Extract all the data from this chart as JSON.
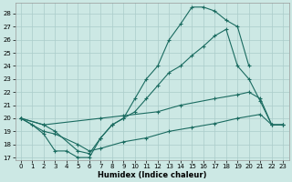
{
  "xlabel": "Humidex (Indice chaleur)",
  "background_color": "#cce8e4",
  "grid_color": "#aaccca",
  "line_color": "#1a6b60",
  "xlim": [
    -0.5,
    23.5
  ],
  "ylim": [
    16.8,
    28.8
  ],
  "yticks": [
    17,
    18,
    19,
    20,
    21,
    22,
    23,
    24,
    25,
    26,
    27,
    28
  ],
  "xticks": [
    0,
    1,
    2,
    3,
    4,
    5,
    6,
    7,
    8,
    9,
    10,
    11,
    12,
    13,
    14,
    15,
    16,
    17,
    18,
    19,
    20,
    21,
    22,
    23
  ],
  "line1_x": [
    0,
    1,
    2,
    3,
    4,
    5,
    6,
    7,
    8,
    9,
    10,
    11,
    12,
    13,
    14,
    15,
    16,
    17,
    18,
    19,
    20
  ],
  "line1_y": [
    20.0,
    19.5,
    18.8,
    17.5,
    17.5,
    17.0,
    17.0,
    18.5,
    19.5,
    20.0,
    21.5,
    23.0,
    24.0,
    26.0,
    27.2,
    28.5,
    28.5,
    28.2,
    27.5,
    27.0,
    24.0
  ],
  "line2_x": [
    0,
    2,
    3,
    5,
    6,
    7,
    8,
    9,
    10,
    11,
    12,
    13,
    14,
    15,
    16,
    17,
    18,
    19,
    20,
    21,
    22,
    23
  ],
  "line2_y": [
    20.0,
    19.5,
    19.0,
    17.5,
    17.3,
    18.5,
    19.5,
    20.0,
    20.5,
    21.5,
    22.5,
    23.5,
    24.0,
    24.8,
    25.5,
    26.3,
    26.8,
    24.0,
    23.0,
    21.3,
    19.5,
    19.5
  ],
  "line3_x": [
    0,
    2,
    7,
    9,
    12,
    14,
    17,
    19,
    20,
    21,
    22,
    23
  ],
  "line3_y": [
    20.0,
    19.5,
    20.0,
    20.2,
    20.5,
    21.0,
    21.5,
    21.8,
    22.0,
    21.5,
    19.5,
    19.5
  ],
  "line4_x": [
    0,
    2,
    3,
    5,
    6,
    7,
    9,
    11,
    13,
    15,
    17,
    19,
    21,
    22,
    23
  ],
  "line4_y": [
    20.0,
    19.0,
    18.8,
    18.0,
    17.5,
    17.7,
    18.2,
    18.5,
    19.0,
    19.3,
    19.6,
    20.0,
    20.3,
    19.5,
    19.5
  ]
}
